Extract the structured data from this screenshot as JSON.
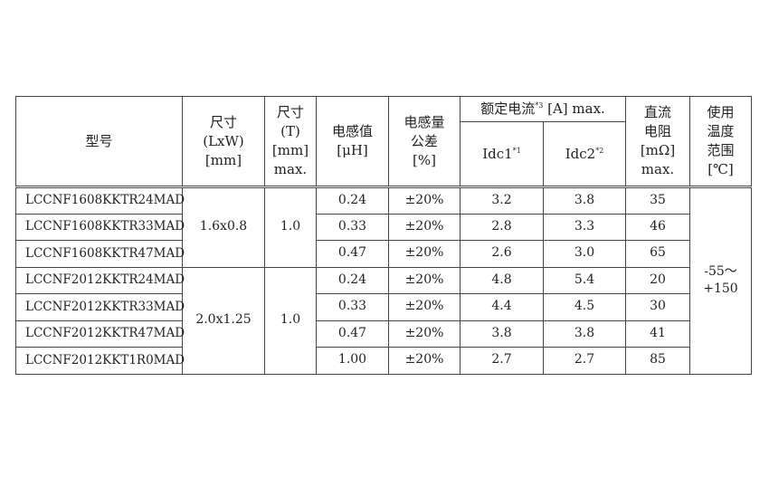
{
  "header": {
    "model": "型号",
    "size": [
      "尺寸",
      "(LxW)",
      "[mm]"
    ],
    "thickness": [
      "尺寸",
      "(T)",
      "[mm]",
      "max."
    ],
    "inductance": [
      "电感值",
      "[μH]"
    ],
    "tolerance": [
      "电感量",
      "公差",
      "[%]"
    ],
    "rated_current": {
      "label": "额定电流",
      "note": "*3",
      "unit": "[A] max."
    },
    "idc1": {
      "label": "Idc1",
      "note": "*1"
    },
    "idc2": {
      "label": "Idc2",
      "note": "*2"
    },
    "dcr": [
      "直流",
      "电阻",
      "[mΩ]",
      "max."
    ],
    "temp": [
      "使用",
      "温度",
      "范围",
      "[℃]"
    ]
  },
  "groups": [
    {
      "size": "1.6x0.8",
      "thickness": "1.0"
    },
    {
      "size": "2.0x1.25",
      "thickness": "1.0"
    }
  ],
  "temp_range": [
    "-55～",
    "+150"
  ],
  "rows": [
    {
      "model": "LCCNF1608KKTR24MAD",
      "inductance": "0.24",
      "tolerance": "±20%",
      "idc1": "3.2",
      "idc2": "3.8",
      "dcr": "35"
    },
    {
      "model": "LCCNF1608KKTR33MAD",
      "inductance": "0.33",
      "tolerance": "±20%",
      "idc1": "2.8",
      "idc2": "3.3",
      "dcr": "46"
    },
    {
      "model": "LCCNF1608KKTR47MAD",
      "inductance": "0.47",
      "tolerance": "±20%",
      "idc1": "2.6",
      "idc2": "3.0",
      "dcr": "65"
    },
    {
      "model": "LCCNF2012KKTR24MAD",
      "inductance": "0.24",
      "tolerance": "±20%",
      "idc1": "4.8",
      "idc2": "5.4",
      "dcr": "20"
    },
    {
      "model": "LCCNF2012KKTR33MAD",
      "inductance": "0.33",
      "tolerance": "±20%",
      "idc1": "4.4",
      "idc2": "4.5",
      "dcr": "30"
    },
    {
      "model": "LCCNF2012KKTR47MAD",
      "inductance": "0.47",
      "tolerance": "±20%",
      "idc1": "3.8",
      "idc2": "3.8",
      "dcr": "41"
    },
    {
      "model": "LCCNF2012KKT1R0MAD",
      "inductance": "1.00",
      "tolerance": "±20%",
      "idc1": "2.7",
      "idc2": "2.7",
      "dcr": "85"
    }
  ]
}
